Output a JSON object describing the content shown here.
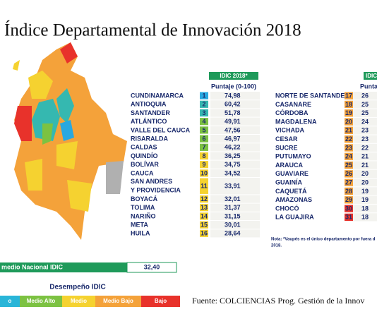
{
  "title": "Índice Departamental de Innovación 2018",
  "left_table": {
    "header": "IDIC 2018*",
    "subheader": "Puntaje (0-100)",
    "rows": [
      {
        "name": "CUNDINAMARCA",
        "rank": "1",
        "score": "74,98",
        "color": "#29a8e0"
      },
      {
        "name": "ANTIOQUIA",
        "rank": "2",
        "score": "60,42",
        "color": "#35b8b0"
      },
      {
        "name": "SANTANDER",
        "rank": "3",
        "score": "51,78",
        "color": "#35b8b0"
      },
      {
        "name": "ATLÁNTICO",
        "rank": "4",
        "score": "49,91",
        "color": "#7cc242"
      },
      {
        "name": "VALLE DEL CAUCA",
        "rank": "5",
        "score": "47,56",
        "color": "#7cc242"
      },
      {
        "name": "RISARALDA",
        "rank": "6",
        "score": "46,97",
        "color": "#7cc242"
      },
      {
        "name": "CALDAS",
        "rank": "7",
        "score": "46,22",
        "color": "#7cc242"
      },
      {
        "name": "QUINDÍO",
        "rank": "8",
        "score": "36,25",
        "color": "#f5d230"
      },
      {
        "name": "BOLÍVAR",
        "rank": "9",
        "score": "34,75",
        "color": "#f5d230"
      },
      {
        "name": "CAUCA",
        "rank": "10",
        "score": "34,52",
        "color": "#f5d230"
      },
      {
        "name": "SAN ANDRES Y PROVIDENCIA",
        "rank": "11",
        "score": "33,91",
        "color": "#f5d230"
      },
      {
        "name": "BOYACÁ",
        "rank": "12",
        "score": "32,01",
        "color": "#f5d230"
      },
      {
        "name": "TOLIMA",
        "rank": "13",
        "score": "31,37",
        "color": "#f5d230"
      },
      {
        "name": "NARIÑO",
        "rank": "14",
        "score": "31,15",
        "color": "#f5d230"
      },
      {
        "name": "META",
        "rank": "15",
        "score": "30,01",
        "color": "#f5d230"
      },
      {
        "name": "HUILA",
        "rank": "16",
        "score": "28,64",
        "color": "#f5d230"
      }
    ]
  },
  "right_table": {
    "header": "IDIC",
    "subheader": "Puntaj",
    "rows": [
      {
        "name": "NORTE DE SANTANDER",
        "rank": "17",
        "score": "26",
        "color": "#f4a23a"
      },
      {
        "name": "CASANARE",
        "rank": "18",
        "score": "25",
        "color": "#f4a23a"
      },
      {
        "name": "CÓRDOBA",
        "rank": "19",
        "score": "25",
        "color": "#f4a23a"
      },
      {
        "name": "MAGDALENA",
        "rank": "20",
        "score": "24",
        "color": "#f4a23a"
      },
      {
        "name": "VICHADA",
        "rank": "21",
        "score": "23",
        "color": "#f4a23a"
      },
      {
        "name": "CESAR",
        "rank": "22",
        "score": "23",
        "color": "#f4a23a"
      },
      {
        "name": "SUCRE",
        "rank": "23",
        "score": "22",
        "color": "#f4a23a"
      },
      {
        "name": "PUTUMAYO",
        "rank": "24",
        "score": "21",
        "color": "#f4a23a"
      },
      {
        "name": "ARAUCA",
        "rank": "25",
        "score": "21",
        "color": "#f4a23a"
      },
      {
        "name": "GUAVIARE",
        "rank": "26",
        "score": "20",
        "color": "#f4a23a"
      },
      {
        "name": "GUAINÍA",
        "rank": "27",
        "score": "20",
        "color": "#f4a23a"
      },
      {
        "name": "CAQUETÁ",
        "rank": "28",
        "score": "19",
        "color": "#f4a23a"
      },
      {
        "name": "AMAZONAS",
        "rank": "29",
        "score": "19",
        "color": "#f4a23a"
      },
      {
        "name": "CHOCÓ",
        "rank": "30",
        "score": "18",
        "color": "#e8322b"
      },
      {
        "name": "LA GUAJIRA",
        "rank": "31",
        "score": "18",
        "color": "#e8322b"
      }
    ],
    "note": [
      "Nota: *Vaupés es el único departamento por fuera d",
      "2018."
    ]
  },
  "national_average": {
    "label": "medio Nacional IDIC",
    "value": "32,40"
  },
  "legend": {
    "title": "Desempeño IDIC",
    "items": [
      {
        "label": "o",
        "color": "#29b5d8"
      },
      {
        "label": "Medio Alto",
        "color": "#7cc242"
      },
      {
        "label": "Medio",
        "color": "#f5d230"
      },
      {
        "label": "Medio Bajo",
        "color": "#f4a23a"
      },
      {
        "label": "Bajo",
        "color": "#e8322b"
      }
    ]
  },
  "source": "Fuente: COLCIENCIAS Prog. Gestión de la Innov"
}
